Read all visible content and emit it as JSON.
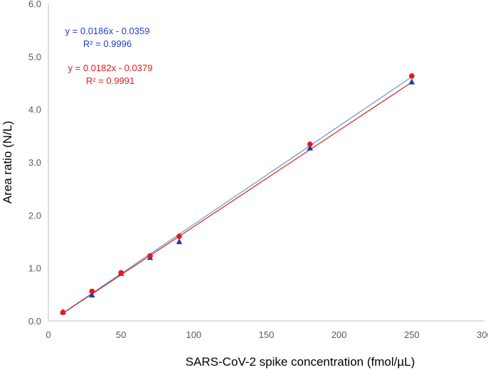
{
  "chart_data": {
    "type": "scatter",
    "xlabel": "SARS-CoV-2 spike concentration (fmol/µL)",
    "ylabel": "Area ratio (N/L)",
    "xlim": [
      0,
      300
    ],
    "ylim": [
      0,
      6.0
    ],
    "x_ticks": [
      "0",
      "50",
      "100",
      "150",
      "200",
      "250",
      "300"
    ],
    "y_ticks": [
      "0.0",
      "1.0",
      "2.0",
      "3.0",
      "4.0",
      "5.0",
      "6.0"
    ],
    "grid": false,
    "x": [
      10,
      30,
      50,
      70,
      90,
      180,
      250
    ],
    "series": [
      {
        "marker": "triangle",
        "color": "#1f3fa6",
        "line_color": "#5b9bd5",
        "values": [
          0.17,
          0.49,
          0.9,
          1.2,
          1.5,
          3.27,
          4.52
        ],
        "trendline": {
          "slope": 0.0186,
          "intercept": -0.0359
        }
      },
      {
        "marker": "circle",
        "color": "#e3191f",
        "line_color": "#e3191f",
        "values": [
          0.16,
          0.56,
          0.91,
          1.23,
          1.6,
          3.34,
          4.63
        ],
        "trendline": {
          "slope": 0.0182,
          "intercept": -0.0379
        }
      }
    ],
    "annotations": [
      {
        "equation": "y = 0.0186x - 0.0359",
        "r2": "R² = 0.9996",
        "color": "#1f3fc8"
      },
      {
        "equation": "y = 0.0182x - 0.0379",
        "r2": "R² = 0.9991",
        "color": "#e3191f"
      }
    ]
  }
}
